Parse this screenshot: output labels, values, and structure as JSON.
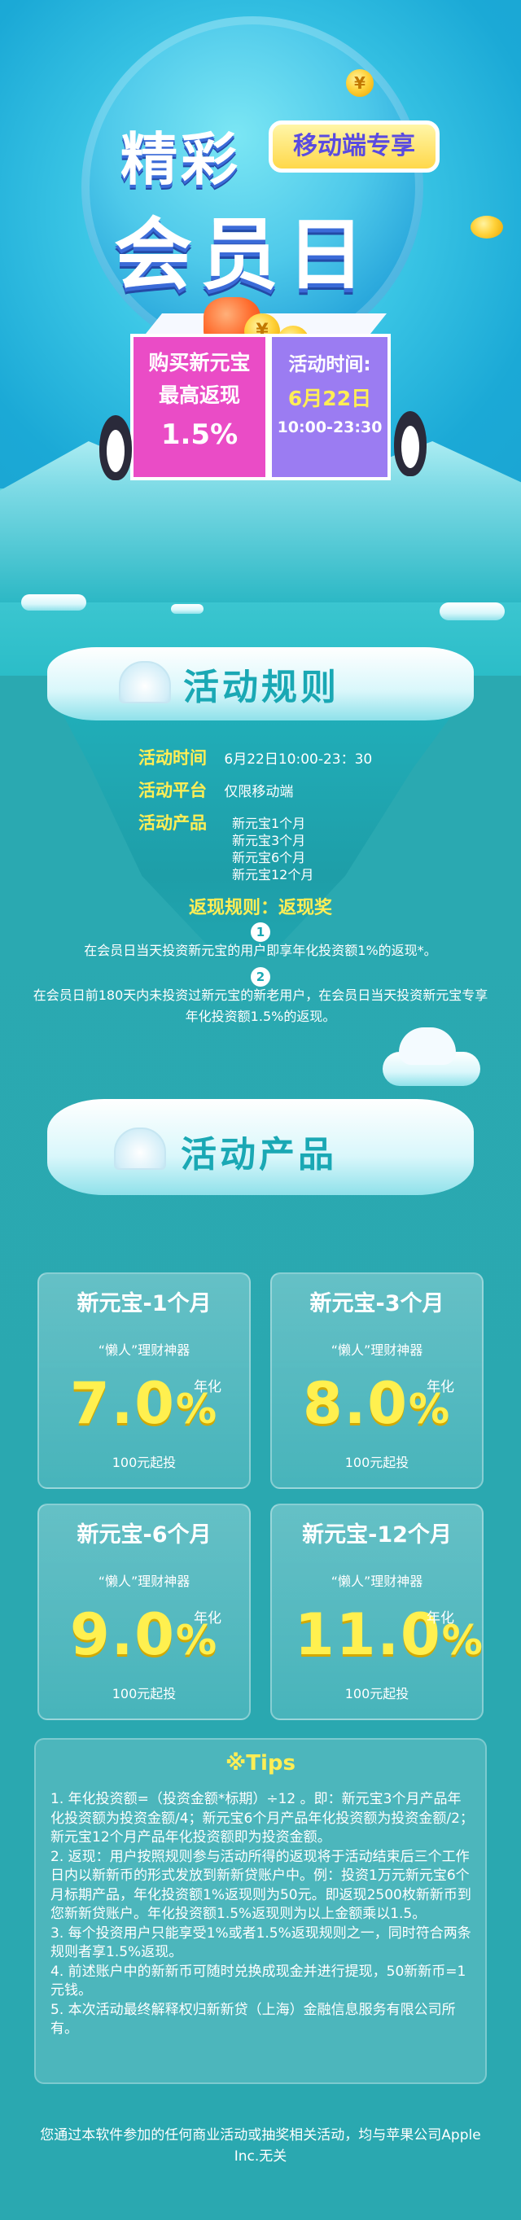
{
  "hero": {
    "title_line1": "精彩",
    "title_line2": "会员日",
    "tag": "移动端专享",
    "left_box": {
      "line1": "购买新元宝",
      "line2": "最高返现",
      "line3": "1.5%"
    },
    "right_box": {
      "line1": "活动时间:",
      "line2": "6月22日",
      "line3": "10:00-23:30"
    },
    "coin_symbol": "¥"
  },
  "rules": {
    "section_title": "活动规则",
    "time_label": "活动时间",
    "time_value": "6月22日10:00-23：30",
    "platform_label": "活动平台",
    "platform_value": "仅限移动端",
    "products_label": "活动产品",
    "products": [
      "新元宝1个月",
      "新元宝3个月",
      "新元宝6个月",
      "新元宝12个月"
    ],
    "rebate_title": "返现规则：返现奖",
    "rebate_items": [
      {
        "num": "1",
        "text": "在会员日当天投资新元宝的用户即享年化投资额1%的返现*。"
      },
      {
        "num": "2",
        "text": "在会员日前180天内未投资过新元宝的新老用户，在会员日当天投资新元宝专享年化投资额1.5%的返现。"
      }
    ]
  },
  "products": {
    "section_title": "活动产品",
    "cards": [
      {
        "name": "新元宝-1个月",
        "sub": "“懒人”理财神器",
        "rate_num": "7.0",
        "rate_pct": "%",
        "annual": "年化",
        "min": "100元起投"
      },
      {
        "name": "新元宝-3个月",
        "sub": "“懒人”理财神器",
        "rate_num": "8.0",
        "rate_pct": "%",
        "annual": "年化",
        "min": "100元起投"
      },
      {
        "name": "新元宝-6个月",
        "sub": "“懒人”理财神器",
        "rate_num": "9.0",
        "rate_pct": "%",
        "annual": "年化",
        "min": "100元起投"
      },
      {
        "name": "新元宝-12个月",
        "sub": "“懒人”理财神器",
        "rate_num": "11.0",
        "rate_pct": "%",
        "annual": "年化",
        "min": "100元起投"
      }
    ]
  },
  "tips": {
    "title": "※Tips",
    "items": [
      "1. 年化投资额=（投资金额*标期）÷12 。即：新元宝3个月产品年化投资额为投资金额/4；新元宝6个月产品年化投资额为投资金额/2；新元宝12个月产品年化投资额即为投资金额。",
      "2. 返现：用户按照规则参与活动所得的返现将于活动结束后三个工作日内以新新币的形式发放到新新贷账户中。例：投资1万元新元宝6个月标期产品，年化投资额1%返现则为50元。即返现2500枚新新币到您新新贷账户。年化投资额1.5%返现则为以上金额乘以1.5。",
      "3. 每个投资用户只能享受1%或者1.5%返现规则之一，同时符合两条规则者享1.5%返现。",
      "4. 前述账户中的新新币可随时兑换成现金并进行提现，50新新币=1元钱。",
      "5. 本次活动最终解释权归新新贷（上海）金融信息服务有限公司所有。"
    ]
  },
  "footer": {
    "text": "您通过本软件参加的任何商业活动或抽奖相关活动，均与苹果公司Apple Inc.无关"
  },
  "colors": {
    "teal": "#2aa8b0",
    "yellow": "#ffee55",
    "pink": "#ea4cc6",
    "purple": "#9b7cf2"
  }
}
